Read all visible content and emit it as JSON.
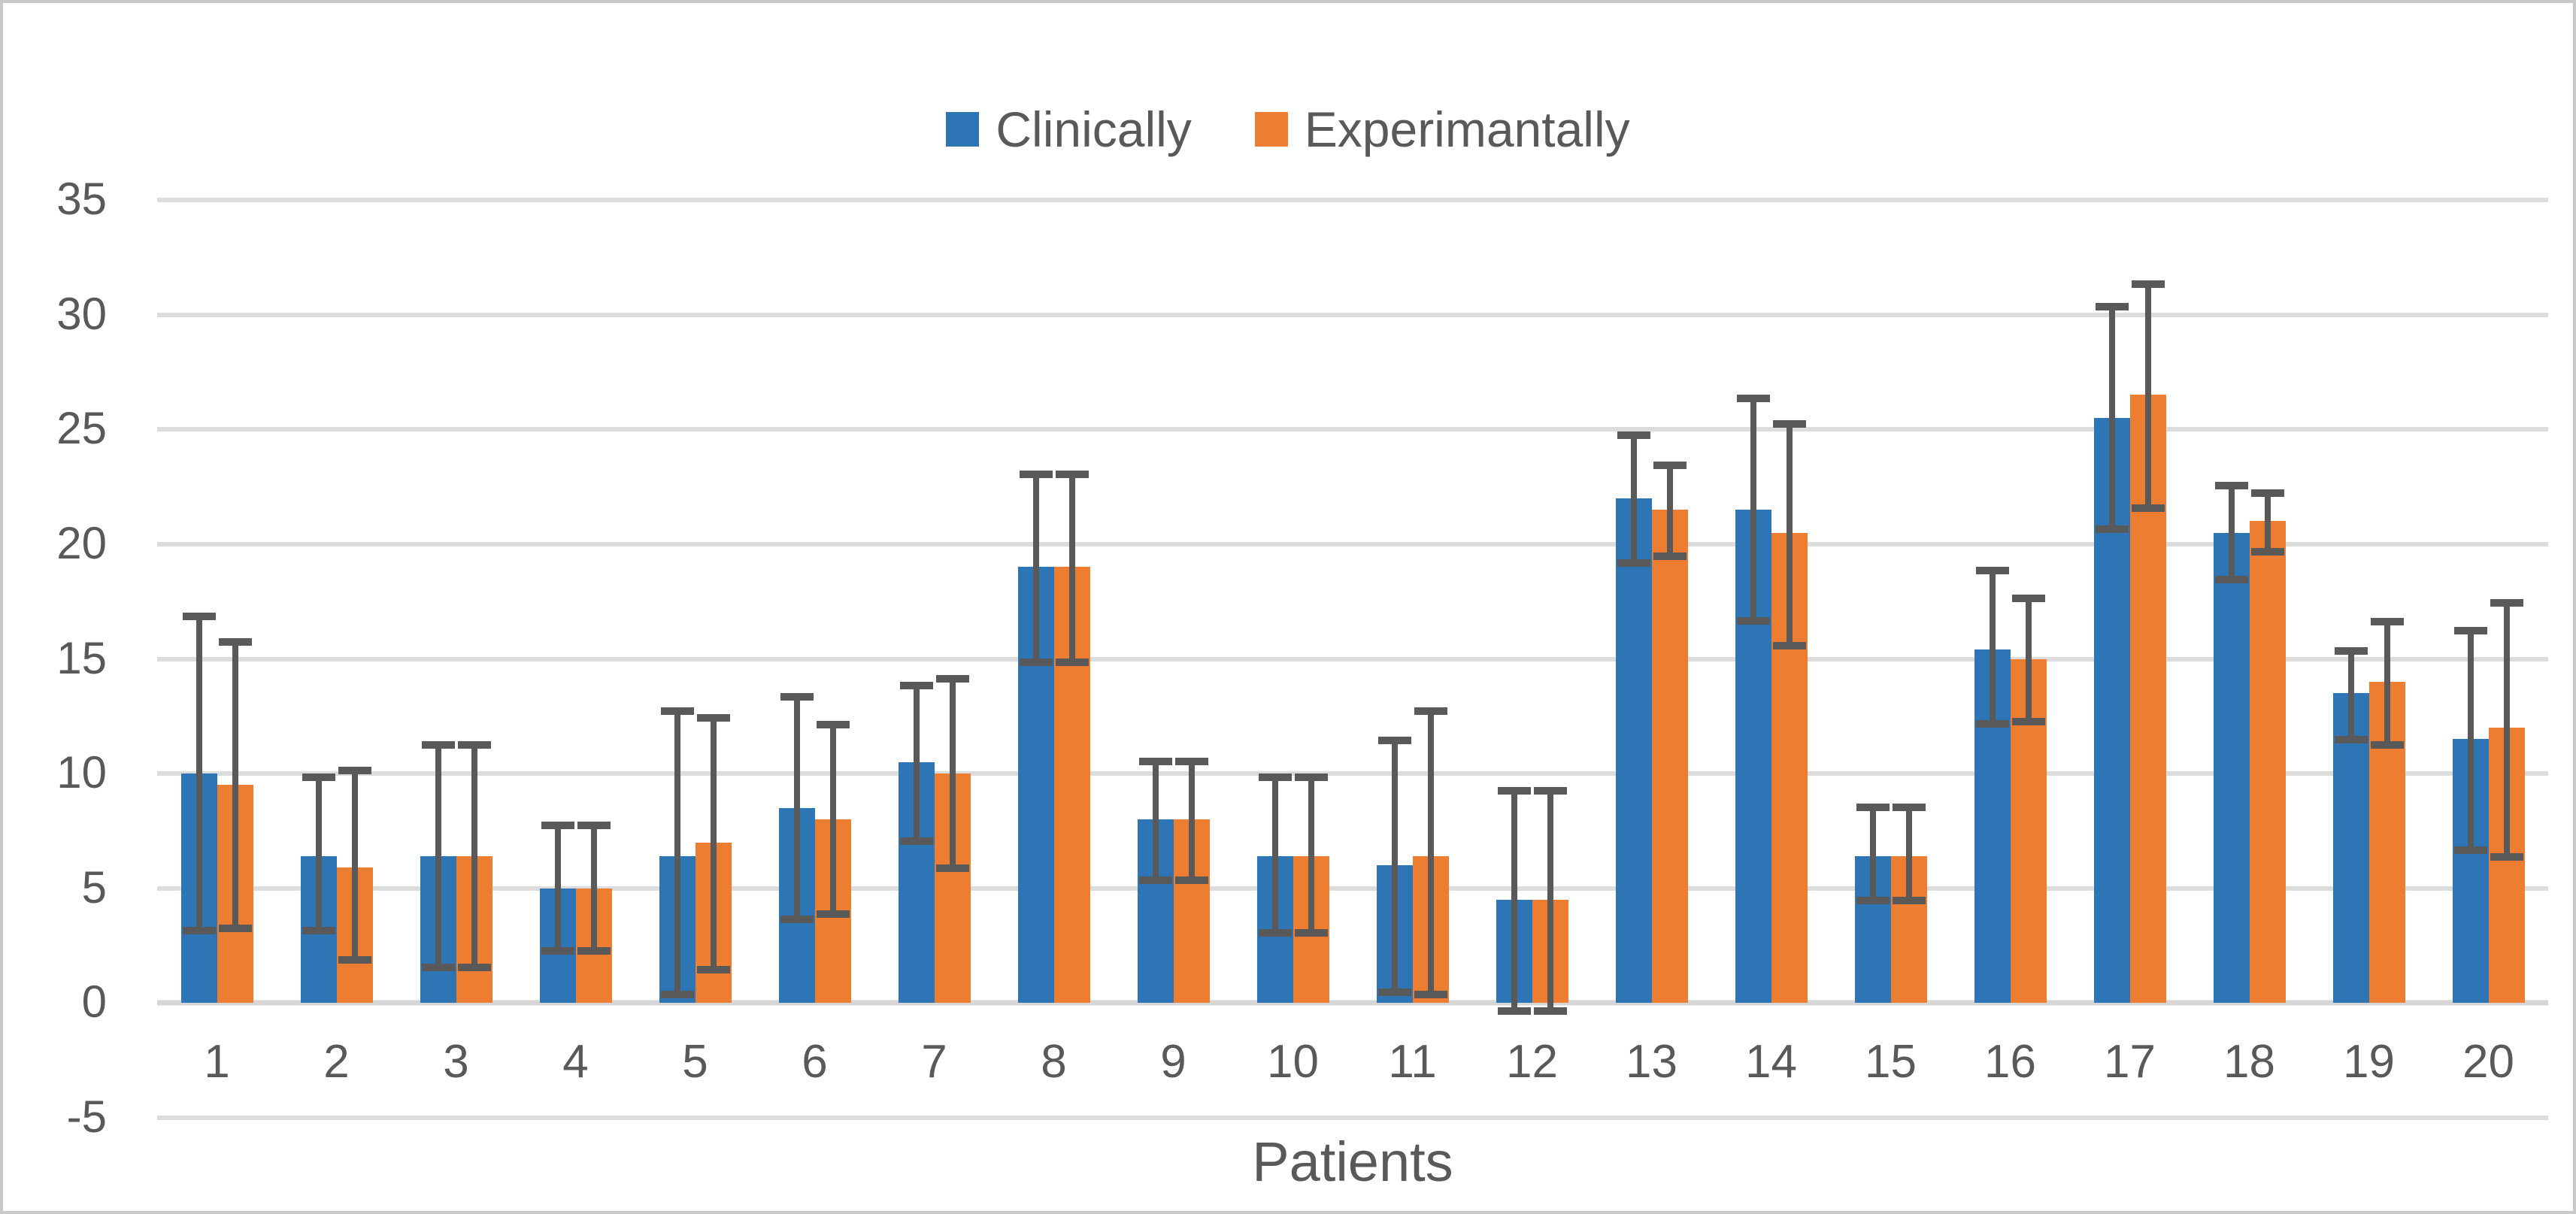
{
  "colors": {
    "background": "#ffffff",
    "frame_border": "#c9c9c9",
    "gridline": "#dcdcdc",
    "axis_text": "#595959"
  },
  "chart_data": {
    "type": "bar",
    "title": "",
    "xlabel": "Patients",
    "ylabel": "",
    "ylim": [
      -5,
      35
    ],
    "yticks": [
      35,
      30,
      25,
      20,
      15,
      10,
      5,
      0,
      -5
    ],
    "grid": true,
    "legend_position": "top-center",
    "error_bar_color": "#595959",
    "categories": [
      "1",
      "2",
      "3",
      "4",
      "5",
      "6",
      "7",
      "8",
      "9",
      "10",
      "11",
      "12",
      "13",
      "14",
      "15",
      "16",
      "17",
      "18",
      "19",
      "20"
    ],
    "series": [
      {
        "name": "Clinically",
        "color": "#2e75b6",
        "values": [
          10,
          6.4,
          6.4,
          5,
          6.4,
          8.5,
          10.5,
          19,
          8,
          6.4,
          6,
          4.5,
          22,
          21.5,
          6.4,
          15.4,
          25.5,
          20.5,
          13.5,
          11.5
        ],
        "error_low": [
          3,
          3,
          1.4,
          2.1,
          0.2,
          3.5,
          6.9,
          14.7,
          5.2,
          2.9,
          0.3,
          -0.5,
          19,
          16.5,
          4.3,
          12,
          20.5,
          18.3,
          11.3,
          6.5
        ],
        "error_high": [
          17,
          10,
          11.4,
          7.9,
          12.9,
          13.5,
          14,
          23.2,
          10.7,
          10,
          11.6,
          9.4,
          24.9,
          26.5,
          8.7,
          19,
          30.5,
          22.7,
          15.5,
          16.4
        ]
      },
      {
        "name": "Experimantally",
        "color": "#ed7d31",
        "values": [
          9.5,
          5.9,
          6.4,
          5,
          7,
          8,
          10,
          19,
          8,
          6.4,
          6.4,
          4.5,
          21.5,
          20.5,
          6.4,
          15,
          26.5,
          21,
          14,
          12
        ],
        "error_low": [
          3.1,
          1.7,
          1.4,
          2.1,
          1.3,
          3.7,
          5.7,
          14.7,
          5.2,
          2.9,
          0.2,
          -0.5,
          19.3,
          15.4,
          4.3,
          12.1,
          21.4,
          19.5,
          11.1,
          6.2
        ],
        "error_high": [
          15.9,
          10.3,
          11.4,
          7.9,
          12.6,
          12.3,
          14.3,
          23.2,
          10.7,
          10,
          12.9,
          9.4,
          23.6,
          25.4,
          8.7,
          17.8,
          31.5,
          22.4,
          16.8,
          17.6
        ]
      }
    ]
  }
}
